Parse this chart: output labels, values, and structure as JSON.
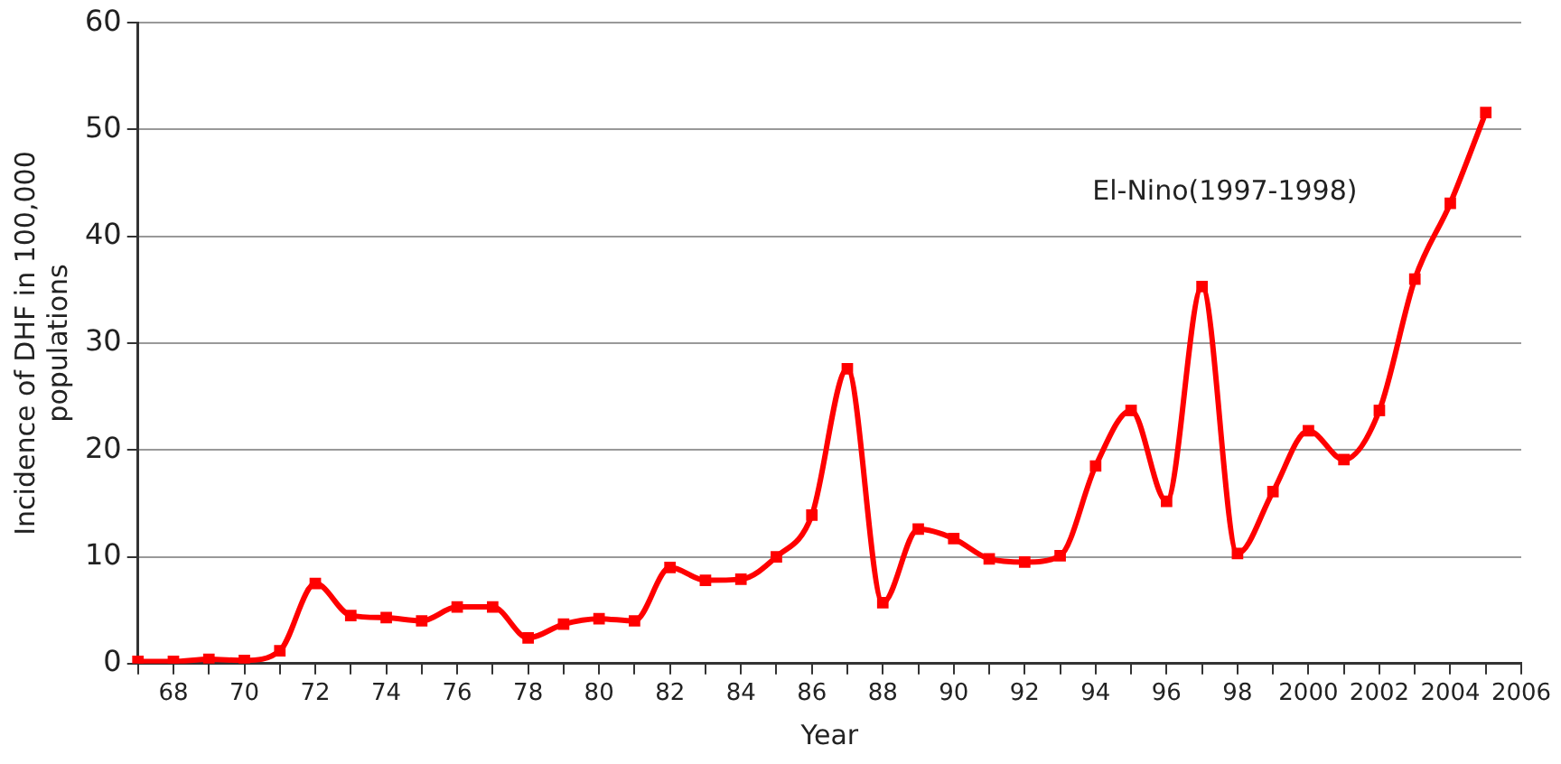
{
  "chart_data": {
    "type": "line",
    "xlabel": "Year",
    "ylabel": "Incidence of DHF in 100,000 populations",
    "annotations": [
      "El-Nino(1997-1998)"
    ],
    "categories": [
      null,
      "68",
      null,
      "70",
      null,
      "72",
      null,
      "74",
      null,
      "76",
      null,
      "78",
      null,
      "80",
      null,
      "82",
      null,
      "84",
      null,
      "86",
      null,
      "88",
      null,
      "90",
      null,
      "92",
      null,
      "94",
      null,
      "96",
      null,
      "98",
      null,
      "2000",
      null,
      "2002",
      null,
      "2004",
      null,
      "2006"
    ],
    "series": [
      {
        "color": "#ff0000",
        "values": [
          0.2,
          0.2,
          0.4,
          0.3,
          1.2,
          7.5,
          4.5,
          4.3,
          4.0,
          5.3,
          5.3,
          2.4,
          3.7,
          4.2,
          4.0,
          9.0,
          7.8,
          7.9,
          10.0,
          13.9,
          27.6,
          5.7,
          12.6,
          11.7,
          9.8,
          9.5,
          10.1,
          18.5,
          23.7,
          15.2,
          35.3,
          10.3,
          16.1,
          21.8,
          19.1,
          23.7,
          36.0,
          43.1,
          51.6,
          null
        ]
      }
    ],
    "ylim": [
      0,
      60
    ],
    "yticks": [
      0,
      10,
      20,
      30,
      40,
      50,
      60
    ],
    "grid": "y",
    "legend": false,
    "marker": "square",
    "line_style": "solid"
  }
}
